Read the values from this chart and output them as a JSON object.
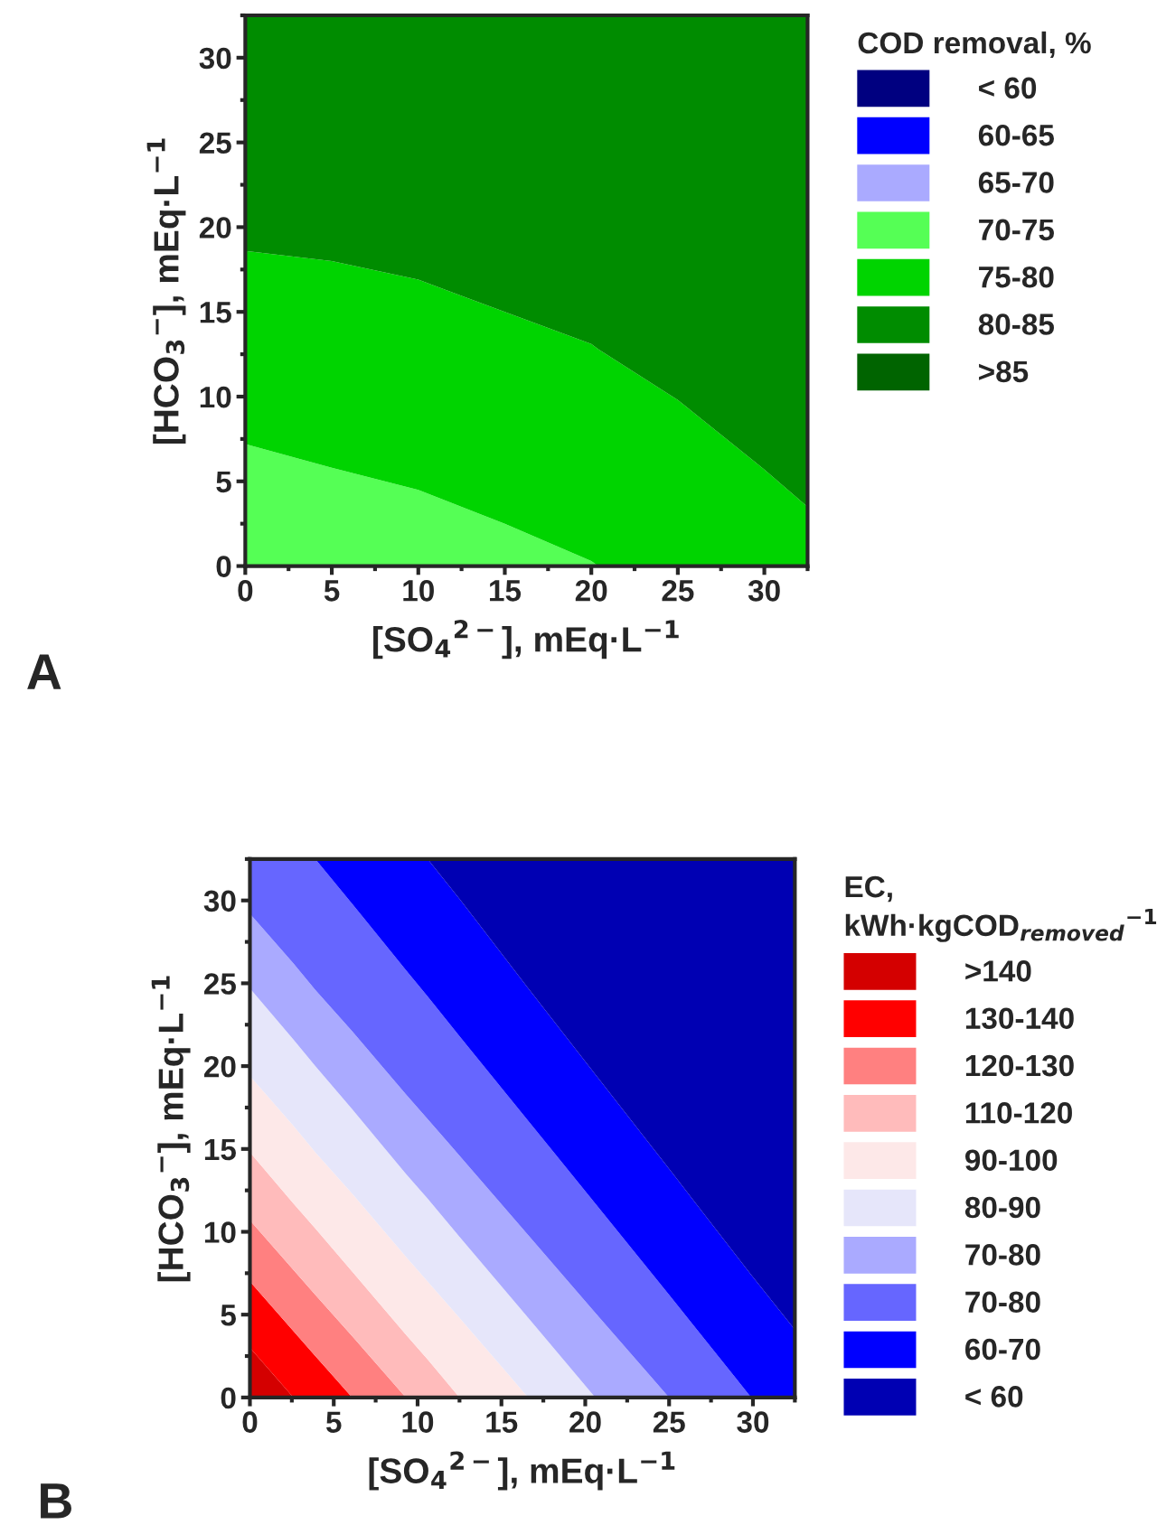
{
  "chart_data": [
    {
      "type": "area",
      "stacked": true,
      "xlabel": "[SO$_{4}$$^{2−}$], mEq·L$^{−1}$",
      "ylabel": "[HCO$_{3}$$^{−}$], mEq·L$^{−1}$",
      "legend_title": "COD removal, %",
      "legend": "right",
      "grid": false,
      "x": [
        0,
        5,
        10,
        15,
        20,
        20.4,
        25,
        30,
        32.5
      ],
      "xlim": [
        0,
        32.5
      ],
      "ylim": [
        0,
        32.5
      ],
      "xticks": [
        0,
        5,
        10,
        15,
        20,
        25,
        30
      ],
      "yticks": [
        0,
        5,
        10,
        15,
        20,
        25,
        30
      ],
      "annotations": [
        "A"
      ],
      "series": [
        {
          "name": "< 60",
          "color": "#000080",
          "values": [
            null,
            null,
            null,
            null,
            null,
            null,
            null,
            null,
            null
          ]
        },
        {
          "name": "60-65",
          "color": "#0000ff",
          "values": [
            null,
            null,
            null,
            null,
            null,
            null,
            null,
            null,
            null
          ]
        },
        {
          "name": "65-70",
          "color": "#aaaaff",
          "values": [
            null,
            null,
            null,
            null,
            null,
            null,
            null,
            null,
            null
          ]
        },
        {
          "name": "70-75",
          "color": "#55ff55",
          "values": [
            7.2,
            5.8,
            4.5,
            2.5,
            0.3,
            0,
            null,
            null,
            null
          ]
        },
        {
          "name": "75-80",
          "color": "#00d400",
          "values": [
            11.4,
            12.2,
            12.4,
            12.5,
            12.8,
            12.8,
            9.8,
            5.7,
            3.5
          ]
        },
        {
          "name": "80-85",
          "color": "#008c00",
          "values": [
            13.9,
            14.5,
            15.6,
            17.5,
            19.4,
            19.7,
            22.7,
            26.8,
            29.0
          ]
        },
        {
          "name": ">85",
          "color": "#006400",
          "values": [
            null,
            null,
            null,
            null,
            null,
            null,
            null,
            null,
            null
          ]
        }
      ]
    },
    {
      "type": "area",
      "stacked": true,
      "xlabel": "[SO$_{4}$$^{2−}$], mEq·L$^{−1}$",
      "ylabel": "[HCO$_{3}$$^{−}$], mEq·L$^{−1}$",
      "legend_title": "EC,\nkWh·kgCOD$_{removed}$$^{−1}$",
      "legend": "right",
      "grid": false,
      "x": [
        0,
        2.6,
        3.9,
        6.1,
        9.3,
        10.6,
        12.5,
        16.6,
        20.6,
        25,
        29.9,
        32.5
      ],
      "xlim": [
        0,
        32.5
      ],
      "ylim": [
        0,
        32.5
      ],
      "xticks": [
        0,
        5,
        10,
        15,
        20,
        25,
        30
      ],
      "yticks": [
        0,
        5,
        10,
        15,
        20,
        25,
        30
      ],
      "annotations": [
        "B"
      ],
      "series": [
        {
          "name": ">140",
          "color": "#d40000",
          "values": [
            3.0,
            0,
            null,
            null,
            null,
            null,
            null,
            null,
            null,
            null,
            null,
            null
          ]
        },
        {
          "name": "130-140",
          "color": "#ff0000",
          "values": [
            4.0,
            4.0,
            2.5,
            0,
            null,
            null,
            null,
            null,
            null,
            null,
            null,
            null
          ]
        },
        {
          "name": "120-130",
          "color": "#ff8080",
          "values": [
            3.7,
            3.7,
            3.7,
            3.7,
            0,
            null,
            null,
            null,
            null,
            null,
            null,
            null
          ]
        },
        {
          "name": "110-120",
          "color": "#ffbbbb",
          "values": [
            4.1,
            4.0,
            4.0,
            3.9,
            3.8,
            2.3,
            0,
            null,
            null,
            null,
            null,
            null
          ]
        },
        {
          "name": "90-100",
          "color": "#fde8e8",
          "values": [
            4.6,
            4.7,
            4.6,
            4.7,
            4.7,
            4.7,
            4.8,
            0,
            null,
            null,
            null,
            null
          ]
        },
        {
          "name": "80-90",
          "color": "#e6e6fa",
          "values": [
            5.3,
            5.2,
            5.2,
            5.1,
            5.0,
            5.0,
            4.9,
            4.8,
            0,
            null,
            null,
            null
          ]
        },
        {
          "name": "70-80",
          "color": "#aaaaff",
          "values": [
            4.5,
            4.6,
            4.6,
            4.7,
            4.8,
            4.8,
            4.9,
            5.0,
            5.1,
            0,
            null,
            null
          ]
        },
        {
          "name": "70-80",
          "color": "#6666ff",
          "values": [
            3.3,
            6.3,
            7.9,
            7.7,
            7.5,
            7.4,
            7.2,
            6.9,
            6.6,
            6.2,
            0,
            null
          ]
        },
        {
          "name": "60-70",
          "color": "#0000ff",
          "values": [
            null,
            null,
            0,
            2.7,
            6.7,
            8.3,
            8.3,
            8.0,
            7.8,
            7.6,
            7.4,
            4.1
          ]
        },
        {
          "name": "< 60",
          "color": "#0000b3",
          "values": [
            null,
            null,
            null,
            null,
            null,
            0,
            2.4,
            7.8,
            13.0,
            18.7,
            25.1,
            28.4
          ]
        }
      ]
    }
  ]
}
